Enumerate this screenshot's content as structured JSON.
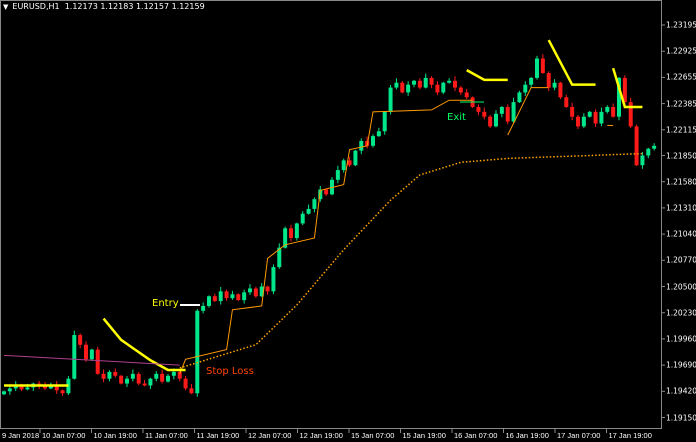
{
  "header": {
    "symbol": "EURUSD,H1",
    "ohlc": "1.12173 1.12183 1.12157 1.12159"
  },
  "annotations": {
    "entry": "Entry",
    "stop_loss": "Stop Loss",
    "exit": "Exit"
  },
  "colors": {
    "bull": "#00e68a",
    "bear": "#ff1a1a",
    "trail": "#ff9900",
    "signal": "#ffff00",
    "ma_slow": "#ffa500",
    "ma_purple": "#b0408f",
    "entry_text": "#ffff00",
    "stop_text": "#ff4500",
    "exit_text": "#00ff66"
  },
  "chart_data": {
    "type": "candlestick",
    "y_ticks": [
      "1.23195",
      "1.22925",
      "1.22655",
      "1.22385",
      "1.22115",
      "1.21850",
      "1.21580",
      "1.21310",
      "1.21040",
      "1.20770",
      "1.20500",
      "1.20230",
      "1.19960",
      "1.19690",
      "1.19420",
      "1.19150"
    ],
    "x_ticks": [
      "9 Jan 2018",
      "10 Jan 07:00",
      "10 Jan 19:00",
      "11 Jan 07:00",
      "11 Jan 19:00",
      "12 Jan 07:00",
      "12 Jan 19:00",
      "15 Jan 07:00",
      "15 Jan 19:00",
      "16 Jan 07:00",
      "16 Jan 19:00",
      "17 Jan 07:00",
      "17 Jan 19:00"
    ],
    "ylim": [
      1.1905,
      1.2335
    ],
    "closes": [
      1.1942,
      1.1945,
      1.1948,
      1.1944,
      1.1946,
      1.195,
      1.1947,
      1.1945,
      1.1949,
      1.1943,
      1.194,
      1.1955,
      1.2,
      1.199,
      1.1975,
      1.1985,
      1.196,
      1.1955,
      1.1962,
      1.1958,
      1.195,
      1.1955,
      1.196,
      1.195,
      1.1948,
      1.1955,
      1.196,
      1.1952,
      1.1958,
      1.1962,
      1.1955,
      1.1945,
      1.194,
      1.2025,
      1.203,
      1.204,
      1.2035,
      1.2045,
      1.2038,
      1.2042,
      1.2036,
      1.2044,
      1.2048,
      1.204,
      1.205,
      1.2045,
      1.207,
      1.209,
      1.211,
      1.21,
      1.2115,
      1.2125,
      1.213,
      1.214,
      1.215,
      1.2145,
      1.216,
      1.217,
      1.218,
      1.2175,
      1.219,
      1.22,
      1.2195,
      1.2205,
      1.221,
      1.223,
      1.2255,
      1.226,
      1.225,
      1.2258,
      1.2262,
      1.2255,
      1.2265,
      1.2258,
      1.225,
      1.226,
      1.2262,
      1.2255,
      1.225,
      1.2245,
      1.2235,
      1.223,
      1.2225,
      1.2215,
      1.2228,
      1.2235,
      1.222,
      1.224,
      1.225,
      1.2258,
      1.2265,
      1.2285,
      1.227,
      1.2255,
      1.226,
      1.2245,
      1.2235,
      1.2225,
      1.2215,
      1.2225,
      1.223,
      1.2218,
      1.223,
      1.2235,
      1.2225,
      1.2265,
      1.224,
      1.2215,
      1.2175,
      1.2185,
      1.2192,
      1.2195
    ],
    "lines": {
      "trail": [
        [
          [
            30,
            1.196
          ],
          [
            31,
            1.1975
          ],
          [
            38,
            1.1985
          ],
          [
            39,
            1.2026
          ],
          [
            44,
            1.203
          ],
          [
            45,
            1.2079
          ],
          [
            48,
            1.2093
          ],
          [
            53,
            1.21
          ],
          [
            54,
            1.2149
          ],
          [
            58,
            1.2155
          ],
          [
            59,
            1.2191
          ],
          [
            62,
            1.2195
          ],
          [
            63,
            1.223
          ],
          [
            73,
            1.2232
          ],
          [
            76,
            1.2242
          ],
          [
            80,
            1.2242
          ]
        ],
        [
          [
            86,
            1.2206
          ],
          [
            90,
            1.2255
          ],
          [
            93,
            1.2255
          ]
        ],
        [
          [
            103,
            1.2216
          ],
          [
            104,
            1.2216
          ]
        ]
      ],
      "signal": [
        [
          [
            0,
            1.1948
          ],
          [
            11,
            1.1948
          ]
        ],
        [
          [
            17,
            1.2017
          ],
          [
            20,
            1.1995
          ],
          [
            25,
            1.1974
          ],
          [
            28,
            1.1964
          ],
          [
            31,
            1.1964
          ]
        ],
        [
          [
            79,
            1.2273
          ],
          [
            82,
            1.2263
          ],
          [
            86,
            1.2263
          ]
        ],
        [
          [
            93,
            1.2304
          ],
          [
            97,
            1.2258
          ],
          [
            101,
            1.2258
          ]
        ],
        [
          [
            104,
            1.2275
          ],
          [
            106,
            1.2235
          ],
          [
            109,
            1.2235
          ]
        ]
      ],
      "ma_slow": [
        [
          [
            30,
            1.1966
          ],
          [
            43,
            1.199
          ],
          [
            50,
            1.2031
          ],
          [
            58,
            1.2088
          ],
          [
            66,
            1.2139
          ],
          [
            71,
            1.2165
          ],
          [
            78,
            1.2178
          ],
          [
            86,
            1.2182
          ],
          [
            100,
            1.2185
          ],
          [
            109,
            1.2187
          ]
        ]
      ],
      "ma_purple": [
        [
          [
            0,
            1.1979
          ],
          [
            30,
            1.1969
          ]
        ]
      ]
    }
  }
}
